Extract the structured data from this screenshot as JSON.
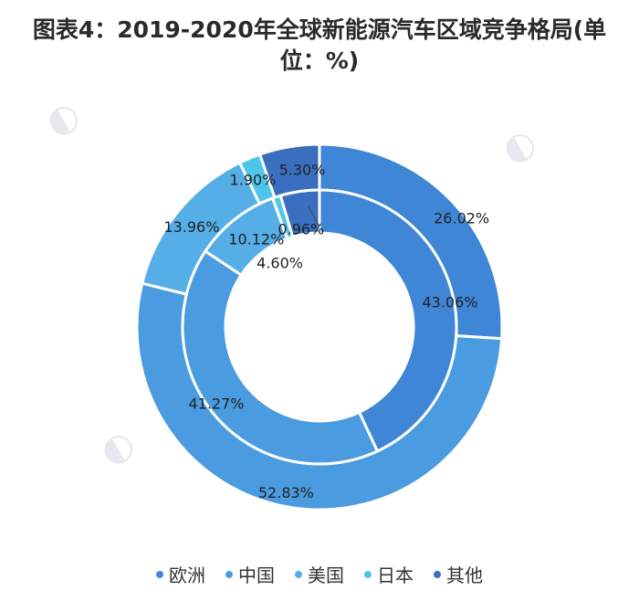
{
  "chart_data": {
    "type": "donut",
    "title": "图表4：2019-2020年全球新能源汽车区域竞争格局(单位：%)",
    "categories": [
      "欧洲",
      "中国",
      "美国",
      "日本",
      "其他"
    ],
    "colors": [
      "#3f86d6",
      "#4a9be0",
      "#55aee6",
      "#4fc5ec",
      "#3a6fbf"
    ],
    "series": [
      {
        "ring": "outer",
        "values": [
          26.02,
          52.83,
          13.96,
          1.9,
          5.3
        ],
        "labels": [
          "26.02%",
          "52.83%",
          "13.96%",
          "1.90%",
          "5.30%"
        ]
      },
      {
        "ring": "inner",
        "values": [
          43.06,
          41.27,
          10.12,
          0.96,
          4.6
        ],
        "labels": [
          "43.06%",
          "41.27%",
          "10.12%",
          "0.96%",
          "4.60%"
        ]
      }
    ],
    "legend_position": "bottom"
  }
}
